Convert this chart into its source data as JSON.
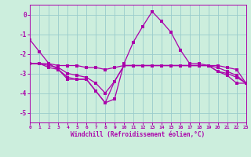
{
  "xlabel": "Windchill (Refroidissement éolien,°C)",
  "xlim": [
    0,
    23
  ],
  "ylim": [
    -5.5,
    0.5
  ],
  "yticks": [
    0,
    -1,
    -2,
    -3,
    -4,
    -5
  ],
  "xticks": [
    0,
    1,
    2,
    3,
    4,
    5,
    6,
    7,
    8,
    9,
    10,
    11,
    12,
    13,
    14,
    15,
    16,
    17,
    18,
    19,
    20,
    21,
    22,
    23
  ],
  "bg_color": "#cceedd",
  "grid_color": "#99cccc",
  "line_color": "#aa00aa",
  "spike_series": [
    -1.3,
    -1.9,
    -2.5,
    -2.8,
    -3.3,
    -3.3,
    -3.3,
    -3.9,
    -4.5,
    -4.3,
    -2.5,
    -1.4,
    -0.6,
    0.15,
    -0.35,
    -0.9,
    -1.8,
    -2.5,
    -2.5,
    -2.6,
    -2.9,
    -3.1,
    -3.5,
    -3.5
  ],
  "flat1": [
    -2.5,
    -2.5,
    -2.5,
    -2.6,
    -2.6,
    -2.6,
    -2.7,
    -2.7,
    -2.8,
    -2.7,
    -2.6,
    -2.6,
    -2.6,
    -2.6,
    -2.6,
    -2.6,
    -2.6,
    -2.6,
    -2.6,
    -2.6,
    -2.6,
    -2.7,
    -2.8,
    -3.5
  ],
  "flat2": [
    -2.5,
    -2.5,
    -2.7,
    -2.8,
    -3.2,
    -3.3,
    -3.3,
    -3.9,
    -4.5,
    -3.4,
    -2.6,
    -2.6,
    -2.6,
    -2.6,
    -2.6,
    -2.6,
    -2.6,
    -2.6,
    -2.6,
    -2.6,
    -2.7,
    -2.9,
    -3.1,
    -3.5
  ],
  "flat3": [
    -2.5,
    -2.5,
    -2.6,
    -2.7,
    -3.0,
    -3.1,
    -3.2,
    -3.5,
    -4.0,
    -3.4,
    -2.6,
    -2.6,
    -2.6,
    -2.6,
    -2.6,
    -2.6,
    -2.6,
    -2.6,
    -2.6,
    -2.6,
    -2.9,
    -3.0,
    -3.2,
    -3.5
  ]
}
